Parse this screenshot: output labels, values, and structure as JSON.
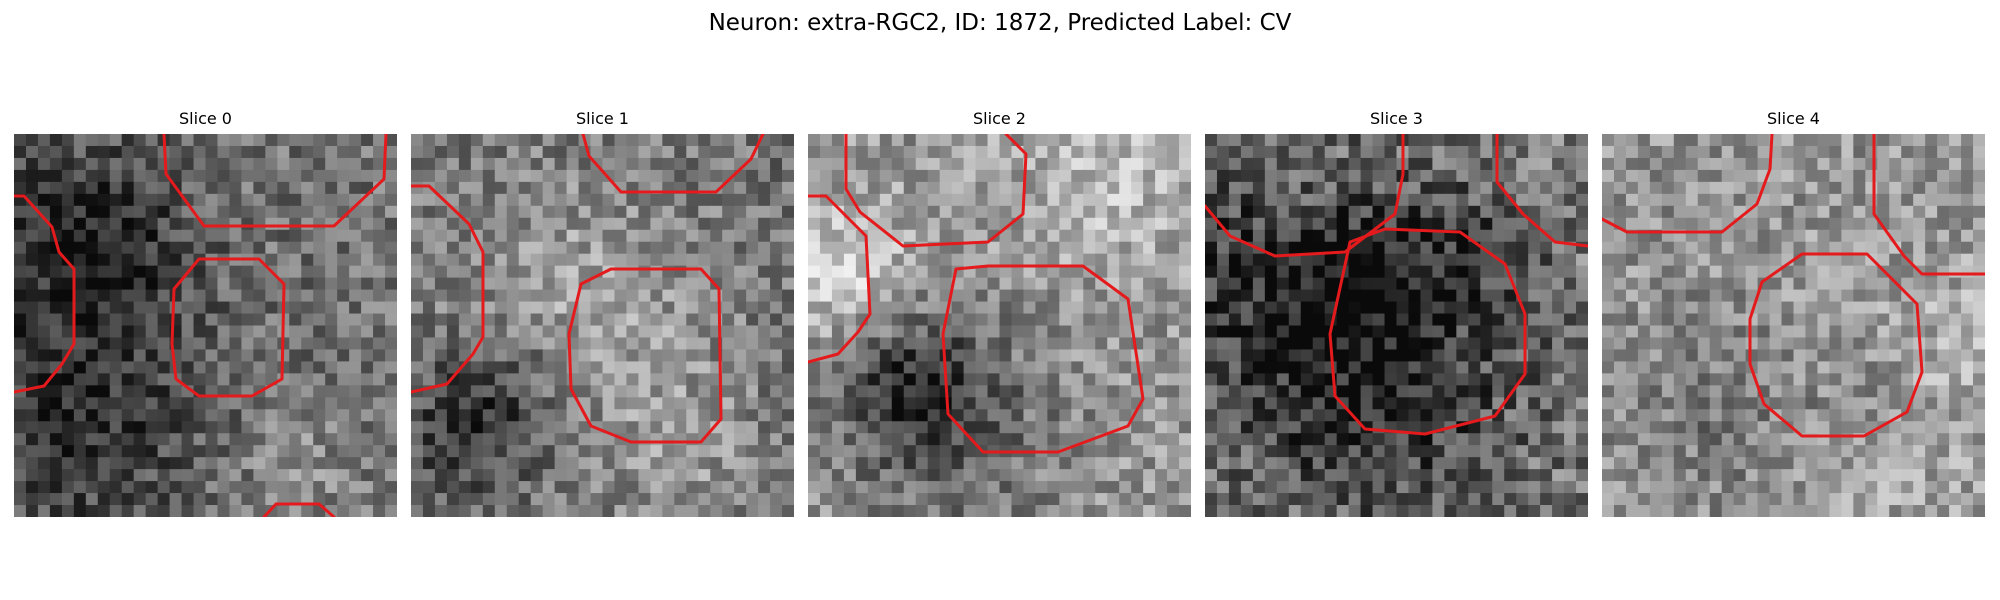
{
  "figure": {
    "title": "Neuron: extra-RGC2, ID: 1872, Predicted Label: CV"
  },
  "panels": [
    {
      "title": "Slice 0",
      "tone": "mid-dark"
    },
    {
      "title": "Slice 1",
      "tone": "mid-dark"
    },
    {
      "title": "Slice 2",
      "tone": "light"
    },
    {
      "title": "Slice 3",
      "tone": "noisy"
    },
    {
      "title": "Slice 4",
      "tone": "light"
    }
  ],
  "colors": {
    "contour": "#e41a1c",
    "page_background": "#ffffff",
    "text": "#000000"
  }
}
